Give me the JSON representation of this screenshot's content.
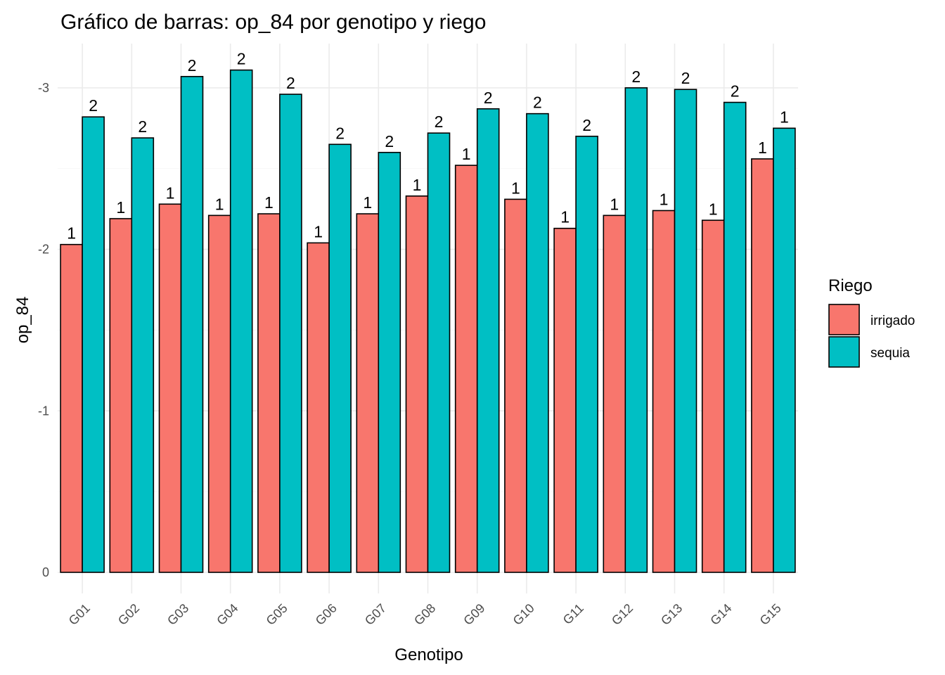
{
  "chart_data": {
    "type": "bar",
    "title": "Gráfico de barras: op_84 por genotipo y riego",
    "xlabel": "Genotipo",
    "ylabel": "op_84",
    "categories": [
      "G01",
      "G02",
      "G03",
      "G04",
      "G05",
      "G06",
      "G07",
      "G08",
      "G09",
      "G10",
      "G11",
      "G12",
      "G13",
      "G14",
      "G15"
    ],
    "series": [
      {
        "name": "irrigado",
        "color": "#F8766D",
        "values": [
          -2.03,
          -2.19,
          -2.28,
          -2.21,
          -2.22,
          -2.04,
          -2.22,
          -2.33,
          -2.52,
          -2.31,
          -2.13,
          -2.21,
          -2.24,
          -2.18,
          -2.56
        ],
        "labels": [
          "1",
          "1",
          "1",
          "1",
          "1",
          "1",
          "1",
          "1",
          "1",
          "1",
          "1",
          "1",
          "1",
          "1",
          "1"
        ]
      },
      {
        "name": "sequia",
        "color": "#00BFC4",
        "values": [
          -2.82,
          -2.69,
          -3.07,
          -3.11,
          -2.96,
          -2.65,
          -2.6,
          -2.72,
          -2.87,
          -2.84,
          -2.7,
          -3.0,
          -2.99,
          -2.91,
          -2.75
        ],
        "labels": [
          "2",
          "2",
          "2",
          "2",
          "2",
          "2",
          "2",
          "2",
          "2",
          "2",
          "2",
          "2",
          "2",
          "2",
          "1"
        ]
      }
    ],
    "yticks": [
      0,
      -1,
      -2,
      -3
    ],
    "ytick_labels": [
      "0",
      "-1",
      "-2",
      "-3"
    ],
    "ylim": [
      0,
      -3.25
    ],
    "y_axis_reversed": true,
    "grid": true,
    "legend": {
      "title": "Riego",
      "position": "right"
    }
  }
}
